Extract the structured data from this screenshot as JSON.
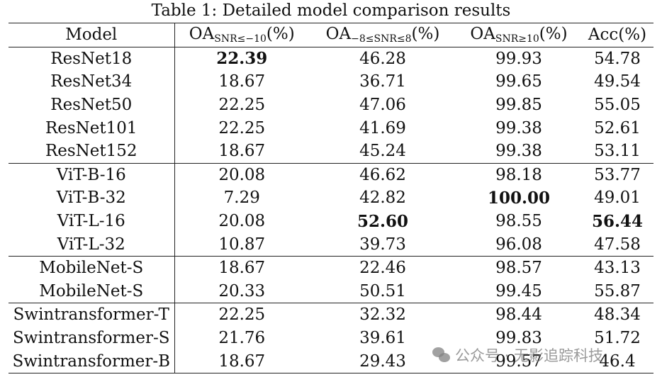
{
  "caption": "Table 1: Detailed model comparison results",
  "header": {
    "model": "Model",
    "col1_main": "OA",
    "col1_sub": "SNR≤−10",
    "col1_unit": "(%)",
    "col2_main": "OA",
    "col2_sub": "−8≤SNR≤8",
    "col2_unit": "(%)",
    "col3_main": "OA",
    "col3_sub": "SNR≥10",
    "col3_unit": "(%)",
    "col4": "Acc(%)"
  },
  "rows": [
    {
      "model": "ResNet18",
      "v1": "22.39",
      "v2": "46.28",
      "v3": "99.93",
      "v4": "54.78"
    },
    {
      "model": "ResNet34",
      "v1": "18.67",
      "v2": "36.71",
      "v3": "99.65",
      "v4": "49.54"
    },
    {
      "model": "ResNet50",
      "v1": "22.25",
      "v2": "47.06",
      "v3": "99.85",
      "v4": "55.05"
    },
    {
      "model": "ResNet101",
      "v1": "22.25",
      "v2": "41.69",
      "v3": "99.38",
      "v4": "52.61"
    },
    {
      "model": "ResNet152",
      "v1": "18.67",
      "v2": "45.24",
      "v3": "99.38",
      "v4": "53.11"
    },
    {
      "model": "ViT-B-16",
      "v1": "20.08",
      "v2": "46.62",
      "v3": "98.18",
      "v4": "53.77"
    },
    {
      "model": "ViT-B-32",
      "v1": "7.29",
      "v2": "42.82",
      "v3": "100.00",
      "v4": "49.01"
    },
    {
      "model": "ViT-L-16",
      "v1": "20.08",
      "v2": "52.60",
      "v3": "98.55",
      "v4": "56.44"
    },
    {
      "model": "ViT-L-32",
      "v1": "10.87",
      "v2": "39.73",
      "v3": "96.08",
      "v4": "47.58"
    },
    {
      "model": "MobileNet-S",
      "v1": "18.67",
      "v2": "22.46",
      "v3": "98.57",
      "v4": "43.13"
    },
    {
      "model": "MobileNet-S",
      "v1": "20.33",
      "v2": "50.51",
      "v3": "99.45",
      "v4": "55.87"
    },
    {
      "model": "Swintransformer-T",
      "v1": "22.25",
      "v2": "32.32",
      "v3": "98.44",
      "v4": "48.34"
    },
    {
      "model": "Swintransformer-S",
      "v1": "21.76",
      "v2": "39.61",
      "v3": "99.83",
      "v4": "51.72"
    },
    {
      "model": "Swintransformer-B",
      "v1": "18.67",
      "v2": "29.43",
      "v3": "99.57",
      "v4": "46.4"
    }
  ],
  "watermark": "公众号 · 无影追踪科技"
}
